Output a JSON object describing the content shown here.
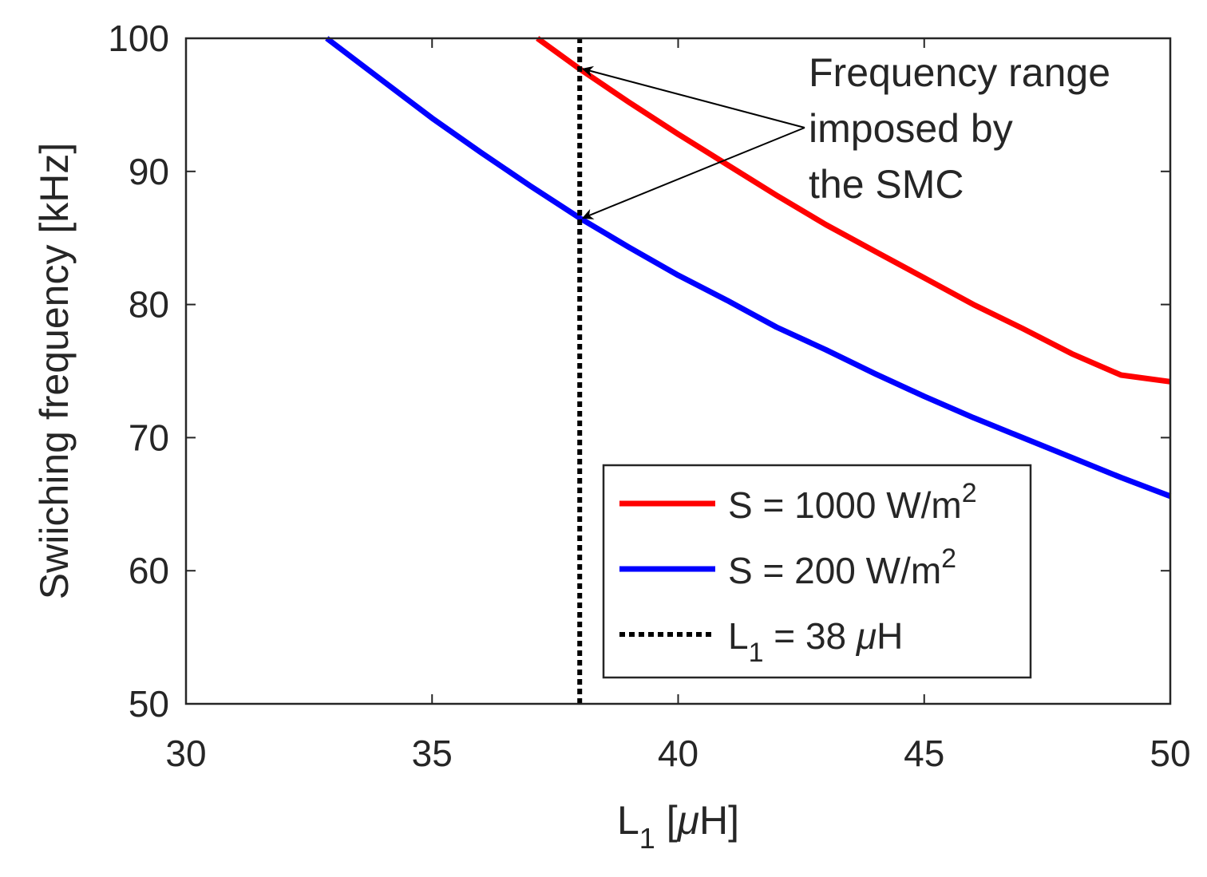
{
  "chart_data": {
    "type": "line",
    "xlabel": {
      "main": "L",
      "sub": "1",
      "rest": " [",
      "mu": "μ",
      "tail": "H]"
    },
    "ylabel": "Swiiching frequency [kHz]",
    "xlim": [
      30,
      50
    ],
    "ylim": [
      50,
      100
    ],
    "xticks": [
      "30",
      "35",
      "40",
      "45",
      "50"
    ],
    "yticks": [
      "50",
      "60",
      "70",
      "80",
      "90",
      "100"
    ],
    "x_tick_values": [
      30,
      35,
      40,
      45,
      50
    ],
    "y_tick_values": [
      50,
      60,
      70,
      80,
      90,
      100
    ],
    "grid": false,
    "legend_position": "bottom-right",
    "series": [
      {
        "name": "S = 1000 W/m2",
        "legend": {
          "main": "S = 1000 W/m",
          "sup": "2"
        },
        "color": "#ff0000",
        "style": "solid",
        "x": [
          37.14,
          38,
          39,
          40,
          41,
          42,
          43,
          44,
          45,
          46,
          47,
          48,
          49,
          50
        ],
        "y": [
          100,
          97.7,
          95.2,
          92.8,
          90.5,
          88.2,
          86.0,
          84.0,
          82.0,
          80.0,
          78.2,
          76.3,
          74.7,
          74.2
        ]
      },
      {
        "name": "S = 200 W/m2",
        "legend": {
          "main": "S = 200 W/m",
          "sup": "2"
        },
        "color": "#0000ff",
        "style": "solid",
        "x": [
          32.86,
          34,
          35,
          36,
          37,
          38,
          39,
          40,
          41,
          42,
          43,
          44,
          45,
          46,
          47,
          48,
          49,
          50
        ],
        "y": [
          100,
          96.8,
          94.0,
          91.4,
          88.9,
          86.5,
          84.3,
          82.2,
          80.3,
          78.3,
          76.6,
          74.8,
          73.1,
          71.5,
          70.0,
          68.5,
          67.0,
          65.6
        ]
      },
      {
        "name": "L1 = 38 μH",
        "legend": {
          "main": "L",
          "sub": "1",
          "rest": " = 38 ",
          "mu": "μ",
          "tail": "H"
        },
        "color": "#000000",
        "style": "dotted",
        "x": [
          38,
          38
        ],
        "y": [
          50,
          100
        ]
      }
    ],
    "annotation": {
      "lines": [
        "Frequency range",
        "imposed by",
        "the SMC"
      ],
      "targets": [
        {
          "x": 38,
          "y": 97.7
        },
        {
          "x": 38,
          "y": 86.5
        }
      ]
    }
  }
}
